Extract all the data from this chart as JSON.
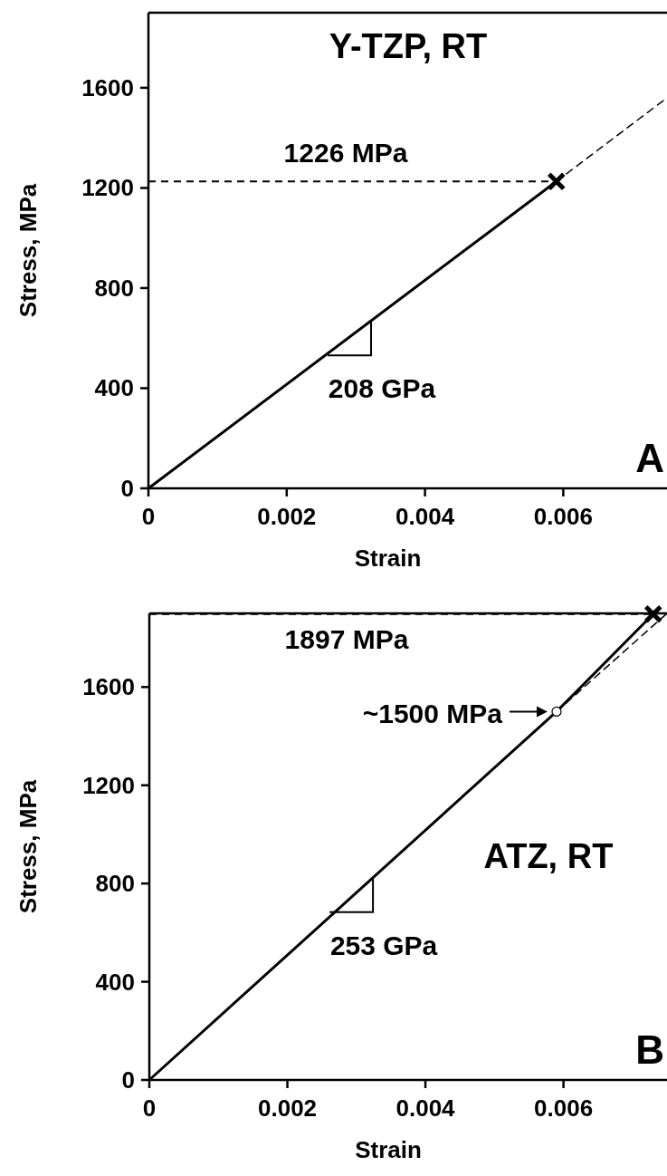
{
  "chart_data": [
    {
      "type": "line",
      "title": "Y-TZP, RT",
      "xlabel": "Strain",
      "ylabel": "Stress, MPa",
      "xlim": [
        0,
        0.0075
      ],
      "ylim": [
        0,
        1900
      ],
      "xticks": [
        0,
        0.002,
        0.004,
        0.006
      ],
      "yticks": [
        0,
        400,
        800,
        1200,
        1600
      ],
      "grid": false,
      "series": [
        {
          "color": "#000000",
          "line_style": "solid",
          "x": [
            0,
            0.0059
          ],
          "values": [
            0,
            1226
          ]
        },
        {
          "color": "#000000",
          "line_style": "dashed",
          "x": [
            0.0059,
            0.0075
          ],
          "values": [
            1226,
            1560
          ]
        },
        {
          "type": "scatter",
          "color": "#000000",
          "marker": "cross",
          "x": [
            0.0059
          ],
          "values": [
            1226
          ]
        }
      ],
      "ref_lines": [
        {
          "axis": "y",
          "value": 1226,
          "label": "1226 MPa",
          "line_style": "dashed"
        }
      ],
      "annotations": [
        {
          "text": "208 GPa",
          "x": 0.00322,
          "y": 669
        },
        "A"
      ]
    },
    {
      "type": "line",
      "title": "ATZ, RT",
      "xlabel": "Strain",
      "ylabel": "Stress, MPa",
      "xlim": [
        0,
        0.0075
      ],
      "ylim": [
        0,
        1900
      ],
      "xticks": [
        0,
        0.002,
        0.004,
        0.006
      ],
      "yticks": [
        0,
        400,
        800,
        1200,
        1600
      ],
      "grid": false,
      "series": [
        {
          "color": "#000000",
          "line_style": "solid",
          "x": [
            0,
            0.0059,
            0.0073
          ],
          "values": [
            0,
            1500,
            1897
          ]
        },
        {
          "color": "#000000",
          "line_style": "dashed",
          "x": [
            0.0059,
            0.0075
          ],
          "values": [
            1500,
            1900
          ]
        },
        {
          "type": "scatter",
          "color": "#000000",
          "marker": "circle",
          "x": [
            0.0059
          ],
          "values": [
            1500
          ]
        },
        {
          "type": "scatter",
          "color": "#000000",
          "marker": "cross",
          "x": [
            0.0073
          ],
          "values": [
            1897
          ]
        }
      ],
      "ref_lines": [
        {
          "axis": "y",
          "value": 1897,
          "label": "1897 MPa",
          "line_style": "dashed"
        }
      ],
      "annotations": [
        {
          "text": "~1500 MPa",
          "x": 0.0059,
          "y": 1500
        },
        {
          "text": "253 GPa",
          "x": 0.00324,
          "y": 824
        },
        "B"
      ]
    }
  ]
}
